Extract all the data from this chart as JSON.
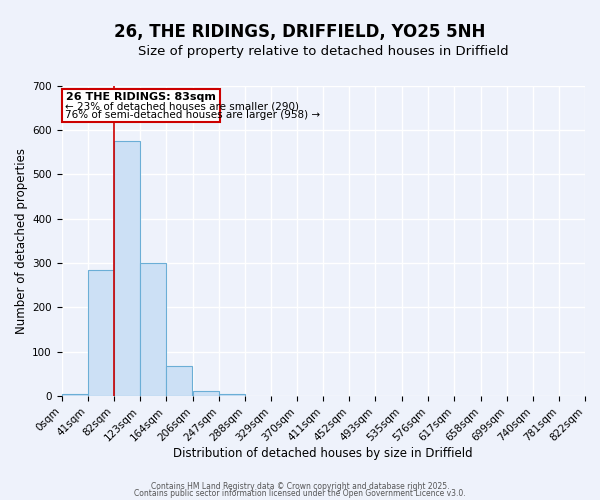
{
  "title": "26, THE RIDINGS, DRIFFIELD, YO25 5NH",
  "subtitle": "Size of property relative to detached houses in Driffield",
  "xlabel": "Distribution of detached houses by size in Driffield",
  "ylabel": "Number of detached properties",
  "bin_edges": [
    0,
    41,
    82,
    123,
    164,
    206,
    247,
    288,
    329,
    370,
    411,
    452,
    493,
    535,
    576,
    617,
    658,
    699,
    740,
    781,
    822
  ],
  "bar_heights": [
    5,
    285,
    575,
    300,
    68,
    12,
    5,
    0,
    0,
    0,
    0,
    0,
    0,
    0,
    0,
    0,
    0,
    0,
    0,
    0
  ],
  "bar_color": "#cce0f5",
  "bar_edge_color": "#6baed6",
  "property_line_x": 83,
  "property_line_color": "#cc0000",
  "annotation_title": "26 THE RIDINGS: 83sqm",
  "annotation_line1": "← 23% of detached houses are smaller (290)",
  "annotation_line2": "76% of semi-detached houses are larger (958) →",
  "annotation_box_color": "#cc0000",
  "ylim": [
    0,
    700
  ],
  "yticks": [
    0,
    100,
    200,
    300,
    400,
    500,
    600,
    700
  ],
  "background_color": "#eef2fb",
  "footer1": "Contains HM Land Registry data © Crown copyright and database right 2025.",
  "footer2": "Contains public sector information licensed under the Open Government Licence v3.0.",
  "grid_color": "#ffffff",
  "title_fontsize": 12,
  "subtitle_fontsize": 9.5,
  "tick_label_fontsize": 7.5
}
